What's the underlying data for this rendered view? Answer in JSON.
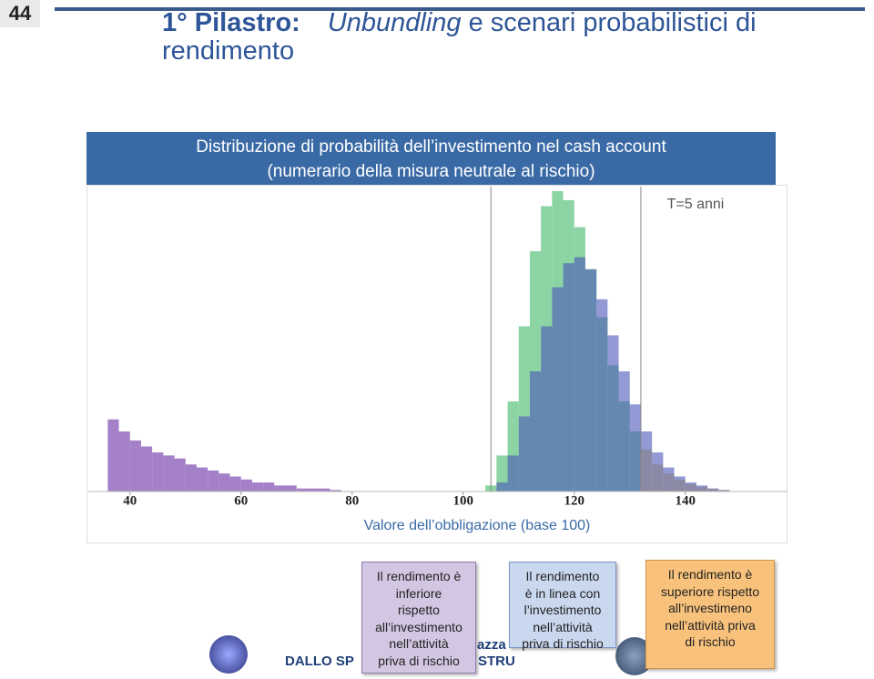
{
  "slide": {
    "page_number": "44",
    "title_lead": "1° Pilastro:",
    "title_italic": "Unbundling",
    "title_rest": " e scenari probabilistici di rendimento",
    "chart_header": [
      "Distribuzione di probabilità dell’investimento nel cash account",
      "(numerario della misura neutrale al rischio)"
    ],
    "boxes": [
      [
        "Il rendimento è",
        "inferiore",
        "rispetto",
        "all’investimento",
        "nell’attività",
        "priva di rischio"
      ],
      [
        "Il rendimento",
        "è in linea con",
        "l’investimento",
        "nell’attività",
        "priva di rischio"
      ],
      [
        "Il rendimento è",
        "superiore rispetto",
        "all’investimeno",
        "nell’attività priva",
        "di rischio"
      ]
    ],
    "footer": [
      "DALLO SP",
      "azza",
      "STRU"
    ]
  },
  "chart_data": {
    "type": "histogram",
    "annotation": "T=5 anni",
    "x_label": "Valore dell’obbligazione (base 100)",
    "bins": [
      34,
      36,
      38,
      40,
      42,
      44,
      46,
      48,
      50,
      52,
      54,
      56,
      58,
      60,
      62,
      64,
      66,
      68,
      70,
      72,
      74,
      76,
      78,
      80,
      82,
      84,
      86,
      88,
      90,
      92,
      94,
      96,
      98,
      100,
      102,
      104,
      106,
      108,
      110,
      112,
      114,
      116,
      118,
      120,
      122,
      124,
      126,
      128,
      130,
      132,
      134,
      136,
      138,
      140,
      142,
      144,
      146,
      148,
      150,
      152,
      154
    ],
    "series": [
      {
        "color": "#7fcf9a",
        "values": [
          0,
          24,
          20,
          17,
          15,
          13,
          12,
          11,
          9,
          8,
          7,
          6,
          5,
          4,
          3,
          3,
          2,
          2,
          1,
          1,
          1,
          0.5,
          0,
          0,
          0,
          0,
          0,
          0,
          0,
          0,
          0,
          0,
          0,
          0,
          0,
          2,
          12,
          30,
          55,
          80,
          95,
          100,
          97,
          88,
          74,
          58,
          42,
          30,
          20,
          14,
          9,
          6,
          4,
          2.5,
          1.5,
          1,
          0.5,
          0,
          0,
          0
        ]
      },
      {
        "color": "#4a55b8",
        "values": [
          0,
          0,
          0,
          0,
          0,
          0,
          0,
          0,
          0,
          0,
          0,
          0,
          0,
          0,
          0,
          0,
          0,
          0,
          0,
          0,
          0,
          0,
          0,
          0,
          0,
          0,
          0,
          0,
          0,
          0,
          0,
          0,
          0,
          0,
          0,
          0,
          3,
          12,
          25,
          40,
          55,
          68,
          76,
          78,
          74,
          64,
          52,
          40,
          29,
          20,
          13,
          8,
          5,
          3,
          2,
          1,
          0.5,
          0,
          0,
          0
        ]
      }
    ],
    "reference_lines": [
      105,
      132
    ],
    "region_colors": [
      "#9a72c2",
      "#7fcf9a",
      "#ecd67f"
    ],
    "xlim": [
      32.5,
      158.4
    ],
    "xticks": [
      40,
      60,
      80,
      100,
      120,
      140
    ],
    "ylim": [
      0,
      100
    ]
  }
}
